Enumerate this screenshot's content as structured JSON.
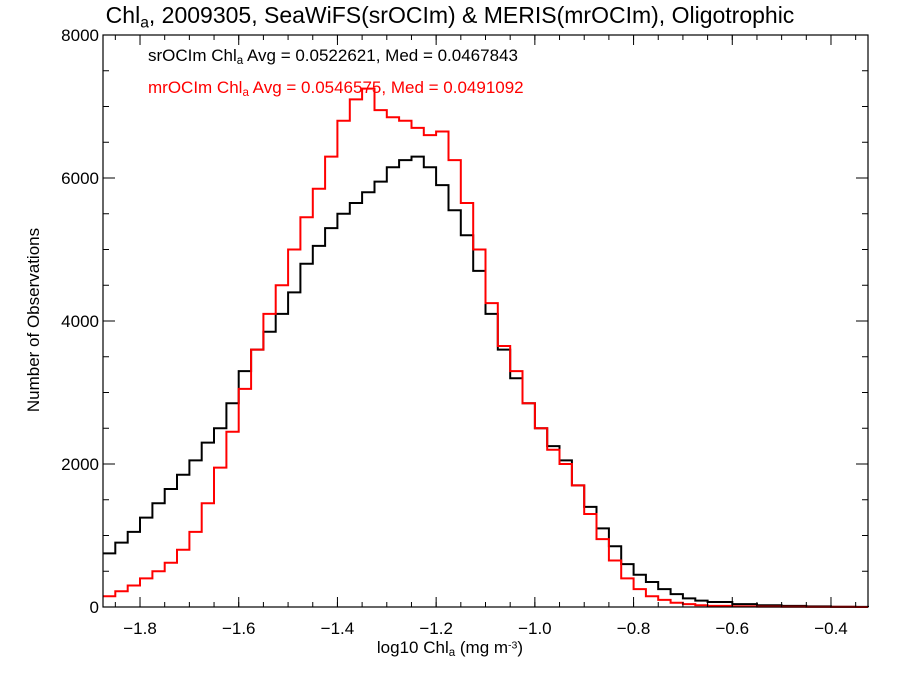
{
  "chart_data": {
    "type": "line",
    "title": {
      "pre": "Chl",
      "sub": "a",
      "post": ", 2009305, SeaWiFS(srOCIm) & MERIS(mrOCIm), Oligotrophic"
    },
    "xlabel": {
      "pre": "log10 Chl",
      "sub": "a",
      "mid": " (mg m",
      "sup": "-3",
      "post": ")"
    },
    "ylabel": "Number of Observations",
    "xlim": [
      -1.875,
      -0.325
    ],
    "ylim": [
      0,
      8000
    ],
    "xticks": [
      -1.8,
      -1.6,
      -1.4,
      -1.2,
      -1.0,
      -0.8,
      -0.6,
      -0.4
    ],
    "xtick_labels": [
      "−1.8",
      "−1.6",
      "−1.4",
      "−1.2",
      "−1.0",
      "−0.8",
      "−0.6",
      "−0.4"
    ],
    "yticks": [
      0,
      2000,
      4000,
      6000,
      8000
    ],
    "ytick_labels": [
      "0",
      "2000",
      "4000",
      "6000",
      "8000"
    ],
    "grid": false,
    "legend_position": "top-left",
    "series": [
      {
        "name": "srOCIm",
        "color": "#000000",
        "legend": {
          "pre": "srOCIm Chl",
          "sub": "a",
          "post": " Avg = 0.0522621, Med = 0.0467843"
        },
        "x": [
          -1.875,
          -1.85,
          -1.825,
          -1.8,
          -1.775,
          -1.75,
          -1.725,
          -1.7,
          -1.675,
          -1.65,
          -1.625,
          -1.6,
          -1.575,
          -1.55,
          -1.525,
          -1.5,
          -1.475,
          -1.45,
          -1.425,
          -1.4,
          -1.375,
          -1.35,
          -1.325,
          -1.3,
          -1.275,
          -1.25,
          -1.225,
          -1.2,
          -1.175,
          -1.15,
          -1.125,
          -1.1,
          -1.075,
          -1.05,
          -1.025,
          -1.0,
          -0.975,
          -0.95,
          -0.925,
          -0.9,
          -0.875,
          -0.85,
          -0.825,
          -0.8,
          -0.775,
          -0.75,
          -0.725,
          -0.7,
          -0.675,
          -0.65,
          -0.6,
          -0.55,
          -0.5,
          -0.45,
          -0.4,
          -0.35,
          -0.325
        ],
        "y": [
          750,
          900,
          1050,
          1250,
          1450,
          1650,
          1850,
          2050,
          2300,
          2500,
          2850,
          3300,
          3600,
          3850,
          4100,
          4400,
          4800,
          5050,
          5300,
          5500,
          5650,
          5800,
          5950,
          6150,
          6250,
          6300,
          6150,
          5900,
          5550,
          5200,
          4700,
          4100,
          3600,
          3200,
          2850,
          2500,
          2250,
          2050,
          1700,
          1400,
          1100,
          850,
          600,
          450,
          350,
          250,
          180,
          120,
          90,
          70,
          40,
          25,
          15,
          8,
          4,
          2,
          0
        ]
      },
      {
        "name": "mrOCIm",
        "color": "#ff0000",
        "legend": {
          "pre": "mrOCIm Chl",
          "sub": "a",
          "post": " Avg = 0.0546575, Med = 0.0491092"
        },
        "x": [
          -1.875,
          -1.85,
          -1.825,
          -1.8,
          -1.775,
          -1.75,
          -1.725,
          -1.7,
          -1.675,
          -1.65,
          -1.625,
          -1.6,
          -1.575,
          -1.55,
          -1.525,
          -1.5,
          -1.475,
          -1.45,
          -1.425,
          -1.4,
          -1.375,
          -1.35,
          -1.325,
          -1.3,
          -1.275,
          -1.25,
          -1.225,
          -1.2,
          -1.175,
          -1.15,
          -1.125,
          -1.1,
          -1.075,
          -1.05,
          -1.025,
          -1.0,
          -0.975,
          -0.95,
          -0.925,
          -0.9,
          -0.875,
          -0.85,
          -0.825,
          -0.8,
          -0.775,
          -0.75,
          -0.725,
          -0.7,
          -0.675,
          -0.65,
          -0.6,
          -0.55,
          -0.5,
          -0.45,
          -0.4,
          -0.35,
          -0.325
        ],
        "y": [
          150,
          220,
          300,
          400,
          500,
          620,
          800,
          1050,
          1450,
          1950,
          2450,
          3050,
          3600,
          4100,
          4500,
          5000,
          5450,
          5850,
          6300,
          6800,
          7100,
          7250,
          6950,
          6850,
          6800,
          6700,
          6600,
          6650,
          6250,
          5650,
          5000,
          4250,
          3650,
          3300,
          2850,
          2500,
          2200,
          2000,
          1700,
          1300,
          950,
          650,
          400,
          250,
          150,
          100,
          60,
          40,
          25,
          15,
          8,
          5,
          3,
          2,
          1,
          0,
          0
        ]
      }
    ]
  }
}
